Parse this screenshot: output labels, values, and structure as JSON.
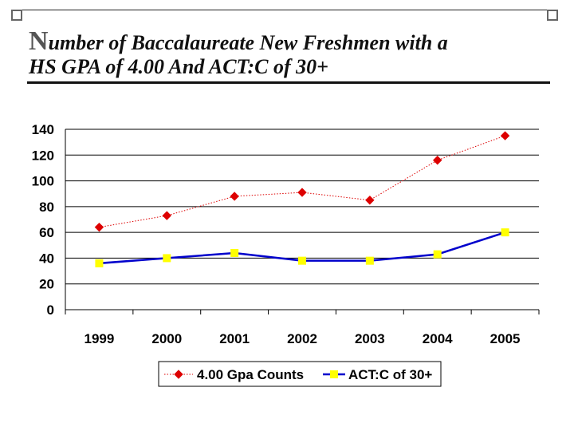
{
  "title": {
    "line1_first": "N",
    "line1_rest": "umber of Baccalaureate New Freshmen with a",
    "line2": "HS GPA of 4.00 And ACT:C of 30+"
  },
  "chart_data": {
    "type": "line",
    "categories": [
      "1999",
      "2000",
      "2001",
      "2002",
      "2003",
      "2004",
      "2005"
    ],
    "series": [
      {
        "name": "4.00 Gpa Counts",
        "values": [
          64,
          73,
          88,
          91,
          85,
          116,
          135
        ],
        "color": "#dd0000",
        "marker": "diamond",
        "line_style": "dotted"
      },
      {
        "name": "ACT:C of 30+",
        "values": [
          36,
          40,
          44,
          38,
          38,
          43,
          60
        ],
        "color": "#0000cc",
        "marker": "square",
        "marker_color": "#ffff00",
        "line_style": "solid"
      }
    ],
    "ylim": [
      0,
      140
    ],
    "yticks": [
      "0",
      "20",
      "40",
      "60",
      "80",
      "100",
      "120",
      "140"
    ],
    "grid": true,
    "legend_position": "bottom"
  }
}
